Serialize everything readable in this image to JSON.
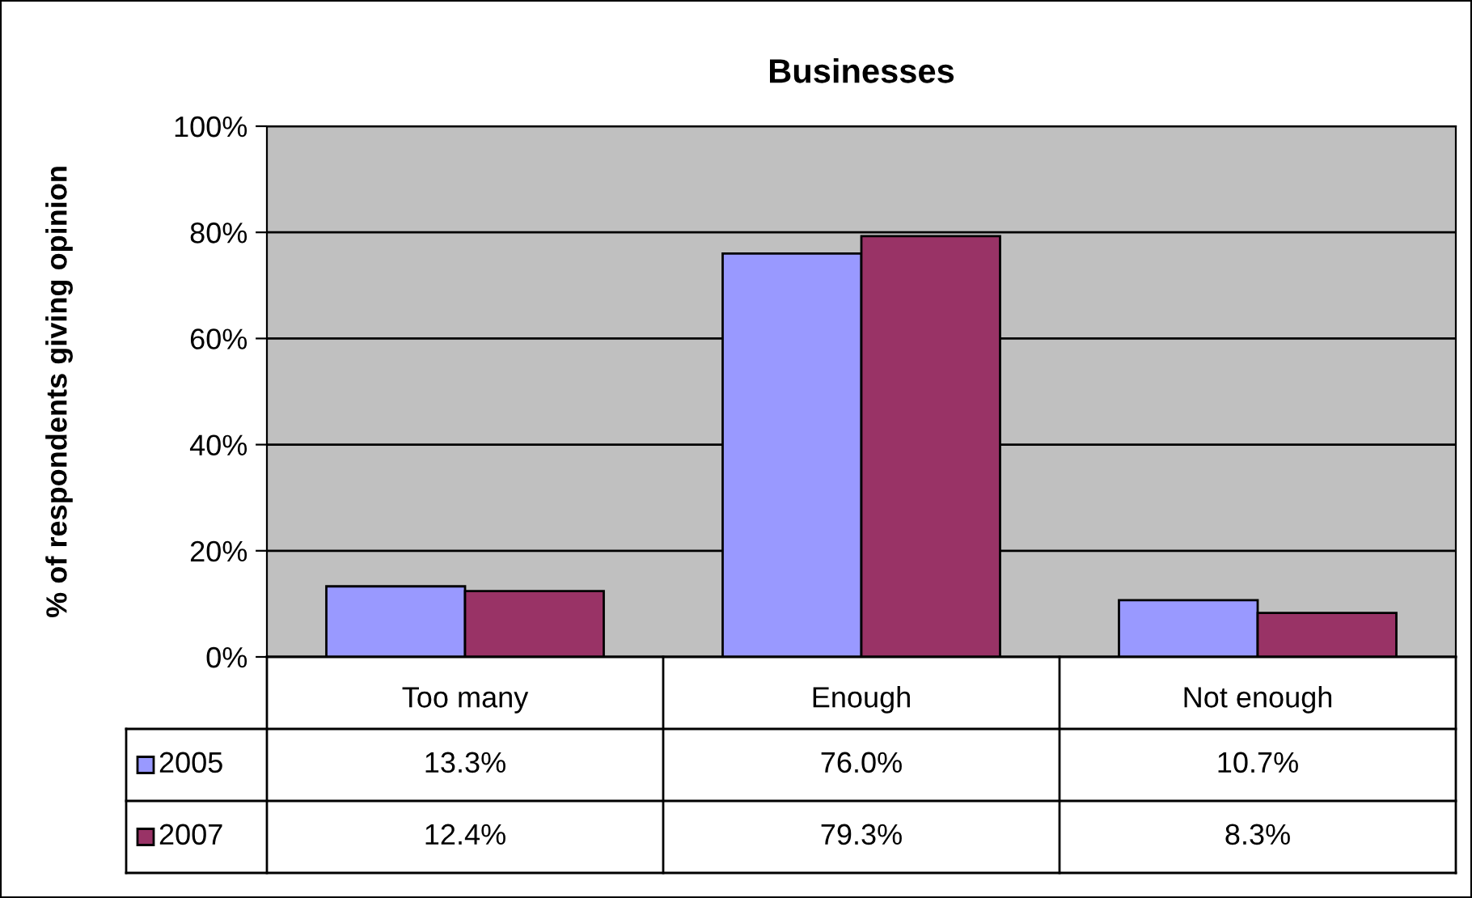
{
  "chart_data": {
    "type": "bar",
    "title": "Businesses",
    "ylabel": "% of respondents giving opinion",
    "categories": [
      "Too many",
      "Enough",
      "Not enough"
    ],
    "series": [
      {
        "name": "2005",
        "color": "#9999ff",
        "values": [
          13.3,
          76.0,
          10.7
        ],
        "value_labels": [
          "13.3%",
          "76.0%",
          "10.7%"
        ]
      },
      {
        "name": "2007",
        "color": "#993366",
        "values": [
          12.4,
          79.3,
          8.3
        ],
        "value_labels": [
          "12.4%",
          "79.3%",
          "8.3%"
        ]
      }
    ],
    "ylim": [
      0,
      100
    ],
    "yticks": [
      {
        "value": 0,
        "label": "0%"
      },
      {
        "value": 20,
        "label": "20%"
      },
      {
        "value": 40,
        "label": "40%"
      },
      {
        "value": 60,
        "label": "60%"
      },
      {
        "value": 80,
        "label": "80%"
      },
      {
        "value": 100,
        "label": "100%"
      }
    ],
    "grid": "y",
    "legend": "bottom"
  }
}
